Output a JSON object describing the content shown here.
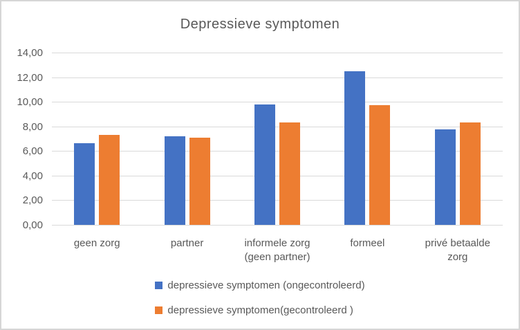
{
  "colors": {
    "series1": "#4472C4",
    "series2": "#ED7D31",
    "grid": "#D9D9D9",
    "text": "#595959",
    "frame_border": "#D6D6D6",
    "background": "#FFFFFF"
  },
  "chart_data": {
    "type": "bar",
    "title": "Depressieve symptomen",
    "categories": [
      "geen zorg",
      "partner",
      "informele zorg (geen partner)",
      "formeel",
      "privé betaalde zorg"
    ],
    "series": [
      {
        "name": "depressieve symptomen (ongecontroleerd)",
        "color": "#4472C4",
        "values": [
          6.65,
          7.2,
          9.8,
          12.5,
          7.75
        ]
      },
      {
        "name": "depressieve symptomen(gecontroleerd )",
        "color": "#ED7D31",
        "values": [
          7.3,
          7.1,
          8.35,
          9.75,
          8.35
        ]
      }
    ],
    "xlabel": "",
    "ylabel": "",
    "ylim": [
      0,
      14
    ],
    "ytick_step": 2,
    "ytick_labels": [
      "0,00",
      "2,00",
      "4,00",
      "6,00",
      "8,00",
      "10,00",
      "12,00",
      "14,00"
    ],
    "grid": true,
    "legend_position": "bottom"
  }
}
